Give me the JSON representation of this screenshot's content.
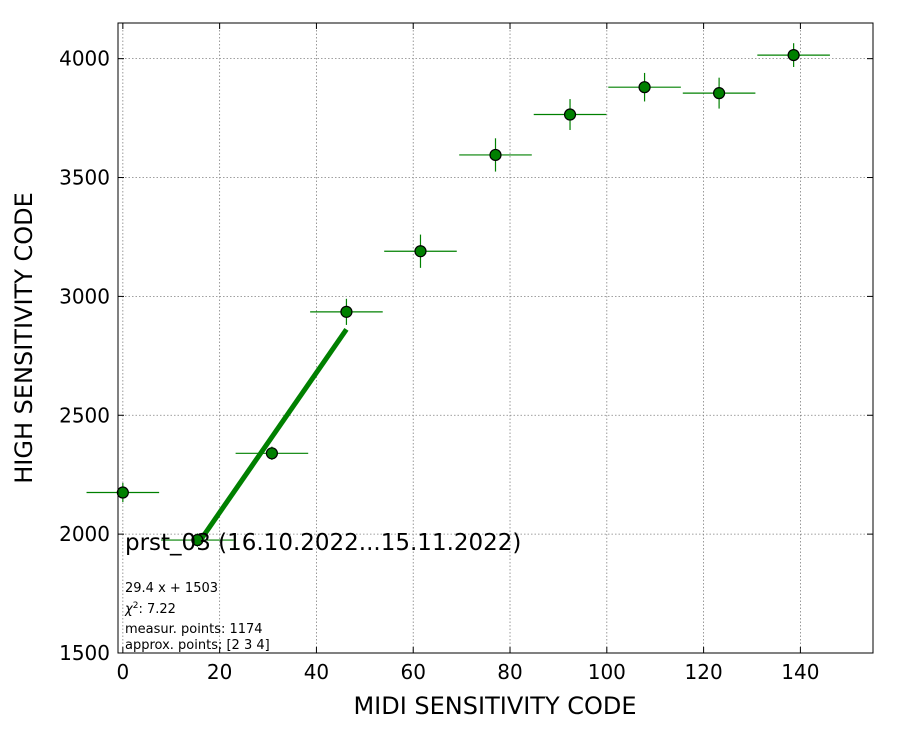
{
  "chart_data": {
    "type": "scatter",
    "xlabel": "MIDI SENSITIVITY CODE",
    "ylabel": "HIGH SENSITIVITY CODE",
    "xlim": [
      -1,
      155
    ],
    "ylim": [
      1500,
      4150
    ],
    "xticks": [
      0,
      20,
      40,
      60,
      80,
      100,
      120,
      140
    ],
    "yticks": [
      1500,
      2000,
      2500,
      3000,
      3500,
      4000
    ],
    "grid": true,
    "marker_color": "#008000",
    "errorbar_color": "#008000",
    "fit_color": "#008000",
    "points": [
      {
        "x": 0,
        "y": 2175,
        "xerr": 7.5,
        "yerr": 40
      },
      {
        "x": 15.4,
        "y": 1975,
        "xerr": 7.5,
        "yerr": 28
      },
      {
        "x": 30.8,
        "y": 2340,
        "xerr": 7.5,
        "yerr": 28
      },
      {
        "x": 46.2,
        "y": 2935,
        "xerr": 7.5,
        "yerr": 55
      },
      {
        "x": 61.5,
        "y": 3190,
        "xerr": 7.5,
        "yerr": 70
      },
      {
        "x": 77,
        "y": 3595,
        "xerr": 7.5,
        "yerr": 70
      },
      {
        "x": 92.4,
        "y": 3765,
        "xerr": 7.5,
        "yerr": 65
      },
      {
        "x": 107.8,
        "y": 3880,
        "xerr": 7.5,
        "yerr": 60
      },
      {
        "x": 123.2,
        "y": 3855,
        "xerr": 7.5,
        "yerr": 65
      },
      {
        "x": 138.6,
        "y": 4015,
        "xerr": 7.5,
        "yerr": 50
      }
    ],
    "fit": {
      "slope": 29.4,
      "intercept": 1503,
      "x_range": [
        15.4,
        46.2
      ]
    },
    "annotations": {
      "title": "prst_03 (16.10.2022...15.11.2022)",
      "fit_text": "29.4 x + 1503",
      "chi2_symbol": "χ",
      "chi2_value": ": 7.22",
      "measur_points": "measur. points: 1174",
      "approx_points": "approx. points: [2 3 4]"
    }
  }
}
